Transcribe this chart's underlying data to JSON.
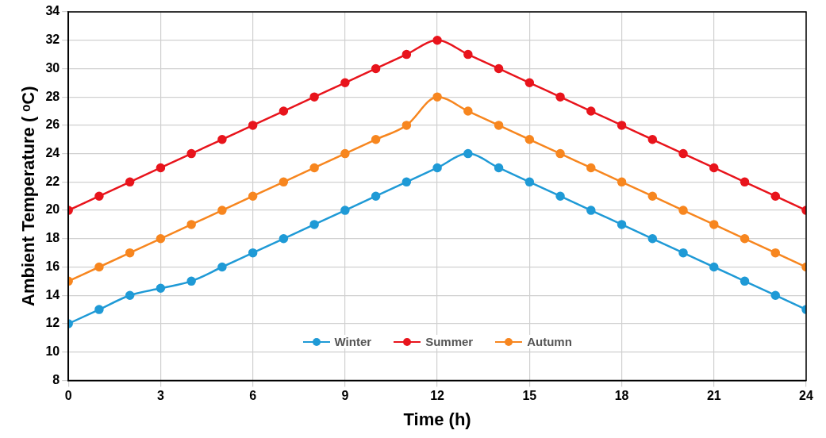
{
  "chart_data": {
    "type": "line",
    "xlabel": "Time (h)",
    "ylabel": "Ambient Temperature ( ᵒC)",
    "x": [
      0,
      1,
      2,
      3,
      4,
      5,
      6,
      7,
      8,
      9,
      10,
      11,
      12,
      13,
      14,
      15,
      16,
      17,
      18,
      19,
      20,
      21,
      22,
      23,
      24
    ],
    "series": [
      {
        "name": "Winter",
        "color": "#1f9ad6",
        "values": [
          12,
          13,
          14,
          14.5,
          15,
          16,
          17,
          18,
          19,
          20,
          21,
          22,
          23,
          24,
          23,
          22,
          21,
          20,
          19,
          18,
          17,
          16,
          15,
          14,
          13
        ]
      },
      {
        "name": "Summer",
        "color": "#e8141c",
        "values": [
          20,
          21,
          22,
          23,
          24,
          25,
          26,
          27,
          28,
          29,
          30,
          31,
          32,
          31,
          30,
          29,
          28,
          27,
          26,
          25,
          24,
          23,
          22,
          21,
          20
        ]
      },
      {
        "name": "Autumn",
        "color": "#f7861f",
        "values": [
          15,
          16,
          17,
          18,
          19,
          20,
          21,
          22,
          23,
          24,
          25,
          26,
          28,
          27,
          26,
          25,
          24,
          23,
          22,
          21,
          20,
          19,
          18,
          17,
          16
        ]
      }
    ],
    "xlim": [
      0,
      24
    ],
    "xticks": [
      0,
      3,
      6,
      9,
      12,
      15,
      18,
      21,
      24
    ],
    "ylim": [
      8,
      34
    ],
    "yticks": [
      8,
      10,
      12,
      14,
      16,
      18,
      20,
      22,
      24,
      26,
      28,
      30,
      32,
      34
    ],
    "grid": true,
    "legend": "bottom",
    "marker": "circle",
    "line_style": "solid"
  }
}
